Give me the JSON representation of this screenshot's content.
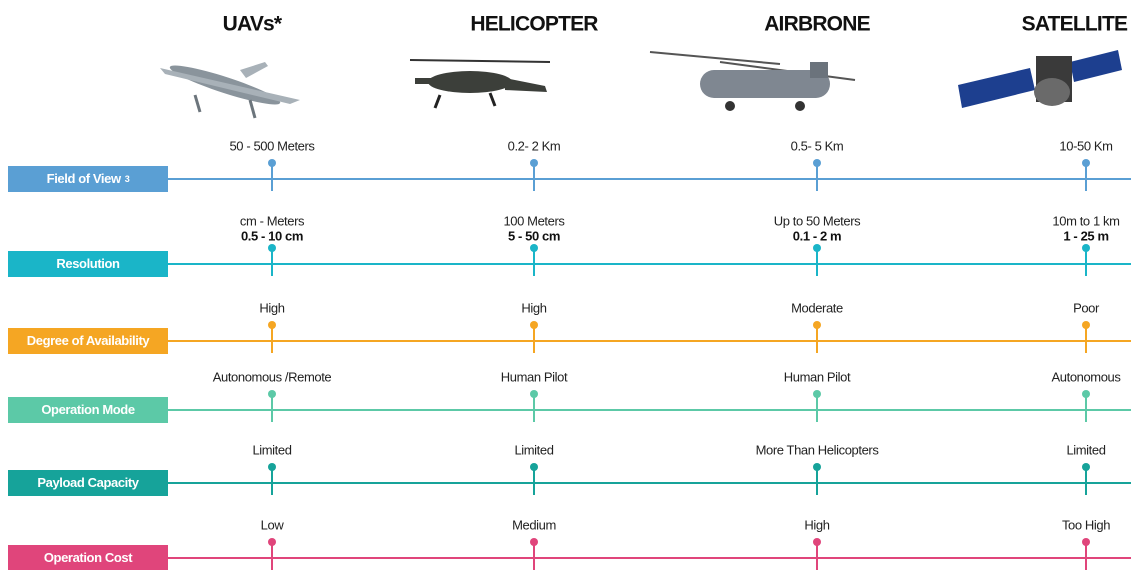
{
  "columns": [
    {
      "title": "UAVs*"
    },
    {
      "title": "HELICOPTER"
    },
    {
      "title": "AIRBRONE"
    },
    {
      "title": "SATELLITE"
    }
  ],
  "rows": [
    {
      "label": "Field of View",
      "note": "3",
      "values": [
        "50 - 500 Meters",
        "0.2- 2 Km",
        "0.5- 5 Km",
        "10-50 Km"
      ]
    },
    {
      "label": "Resolution",
      "values": [
        "cm - Meters",
        "100 Meters",
        "Up to 50 Meters",
        "10m to 1 km"
      ],
      "details": [
        "0.5 - 10 cm",
        "5 - 50 cm",
        "0.1 - 2 m",
        "1 - 25 m"
      ]
    },
    {
      "label": "Degree of Availability",
      "values": [
        "High",
        "High",
        "Moderate",
        "Poor"
      ]
    },
    {
      "label": "Operation Mode",
      "values": [
        "Autonomous /Remote",
        "Human Pilot",
        "Human Pilot",
        "Autonomous"
      ]
    },
    {
      "label": "Payload Capacity",
      "values": [
        "Limited",
        "Limited",
        "More Than Helicopters",
        "Limited"
      ]
    },
    {
      "label": "Operation Cost",
      "values": [
        "Low",
        "Medium",
        "High",
        "Too High"
      ]
    }
  ]
}
